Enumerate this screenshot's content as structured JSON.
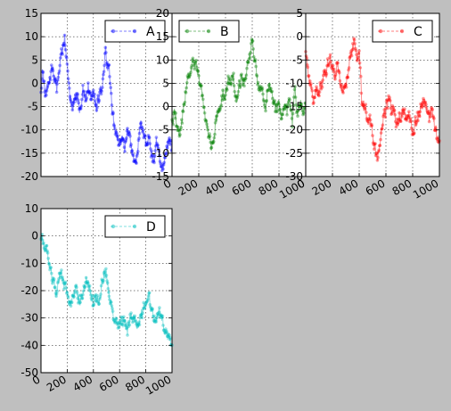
{
  "figure": {
    "background": "#bfbfbf"
  },
  "chart_data": [
    {
      "type": "line",
      "series": [
        {
          "name": "A",
          "color": "#0000ff",
          "anchors": [
            [
              0,
              -1.5
            ],
            [
              10,
              3
            ],
            [
              20,
              0
            ],
            [
              40,
              -3
            ],
            [
              60,
              1
            ],
            [
              80,
              3
            ],
            [
              100,
              1
            ],
            [
              120,
              -1
            ],
            [
              140,
              4
            ],
            [
              160,
              7
            ],
            [
              180,
              9
            ],
            [
              200,
              3
            ],
            [
              220,
              -2
            ],
            [
              240,
              -5
            ],
            [
              260,
              -3
            ],
            [
              280,
              -4
            ],
            [
              300,
              -6
            ],
            [
              320,
              -2
            ],
            [
              340,
              -4
            ],
            [
              360,
              -1
            ],
            [
              380,
              -3
            ],
            [
              400,
              -2
            ],
            [
              420,
              -5
            ],
            [
              440,
              -4
            ],
            [
              460,
              -1
            ],
            [
              480,
              2
            ],
            [
              490,
              8
            ],
            [
              500,
              5
            ],
            [
              520,
              3
            ],
            [
              540,
              -5
            ],
            [
              560,
              -9
            ],
            [
              580,
              -11
            ],
            [
              600,
              -13
            ],
            [
              620,
              -12
            ],
            [
              640,
              -15
            ],
            [
              660,
              -10
            ],
            [
              680,
              -12
            ],
            [
              700,
              -15
            ],
            [
              720,
              -18
            ],
            [
              740,
              -14
            ],
            [
              760,
              -8
            ],
            [
              780,
              -10
            ],
            [
              800,
              -13
            ],
            [
              820,
              -12
            ],
            [
              840,
              -15
            ],
            [
              860,
              -17
            ],
            [
              880,
              -13
            ],
            [
              900,
              -15
            ],
            [
              920,
              -19
            ],
            [
              940,
              -16
            ],
            [
              960,
              -14
            ],
            [
              980,
              -12
            ],
            [
              1000,
              -14
            ]
          ]
        }
      ],
      "xlim": [
        0,
        1000
      ],
      "ylim": [
        -20,
        15
      ],
      "yticks": [
        "-20",
        "-15",
        "-10",
        "-5",
        "0",
        "5",
        "10",
        "15"
      ],
      "xticks": [],
      "legend": {
        "label": "A",
        "placement": "upper right"
      },
      "grid": true
    },
    {
      "type": "line",
      "series": [
        {
          "name": "B",
          "color": "#007f00",
          "anchors": [
            [
              0,
              -3
            ],
            [
              20,
              -2
            ],
            [
              40,
              -4
            ],
            [
              60,
              -6
            ],
            [
              80,
              -2
            ],
            [
              100,
              3
            ],
            [
              120,
              6
            ],
            [
              140,
              7
            ],
            [
              160,
              9
            ],
            [
              180,
              10
            ],
            [
              200,
              6
            ],
            [
              220,
              3
            ],
            [
              240,
              1
            ],
            [
              260,
              -4
            ],
            [
              280,
              -6
            ],
            [
              300,
              -9
            ],
            [
              320,
              -5
            ],
            [
              340,
              -2
            ],
            [
              360,
              0
            ],
            [
              380,
              3
            ],
            [
              400,
              2
            ],
            [
              420,
              5
            ],
            [
              440,
              4
            ],
            [
              460,
              7
            ],
            [
              480,
              1
            ],
            [
              500,
              4
            ],
            [
              520,
              7
            ],
            [
              540,
              5
            ],
            [
              560,
              8
            ],
            [
              580,
              10
            ],
            [
              600,
              14
            ],
            [
              620,
              10
            ],
            [
              640,
              5
            ],
            [
              660,
              3
            ],
            [
              680,
              2
            ],
            [
              700,
              0
            ],
            [
              720,
              5
            ],
            [
              740,
              3
            ],
            [
              760,
              1
            ],
            [
              780,
              -1
            ],
            [
              800,
              0
            ],
            [
              820,
              -2
            ],
            [
              840,
              1
            ],
            [
              860,
              -1
            ],
            [
              880,
              2
            ],
            [
              900,
              -3
            ],
            [
              920,
              3
            ],
            [
              940,
              -2
            ],
            [
              960,
              1
            ],
            [
              980,
              -1
            ],
            [
              1000,
              0
            ]
          ]
        }
      ],
      "xlim": [
        0,
        1000
      ],
      "ylim": [
        -15,
        20
      ],
      "yticks": [
        "-15",
        "-10",
        "-5",
        "0",
        "5",
        "10",
        "15",
        "20"
      ],
      "xticks": [
        "0",
        "200",
        "400",
        "600",
        "800",
        "1000"
      ],
      "legend": {
        "label": "B",
        "placement": "upper left"
      },
      "grid": true
    },
    {
      "type": "line",
      "series": [
        {
          "name": "C",
          "color": "#ff0000",
          "anchors": [
            [
              0,
              -4
            ],
            [
              20,
              -9
            ],
            [
              40,
              -10
            ],
            [
              60,
              -14
            ],
            [
              80,
              -11
            ],
            [
              100,
              -12
            ],
            [
              120,
              -10
            ],
            [
              140,
              -8
            ],
            [
              160,
              -7
            ],
            [
              180,
              -5
            ],
            [
              200,
              -6
            ],
            [
              220,
              -9
            ],
            [
              240,
              -5
            ],
            [
              260,
              -10
            ],
            [
              280,
              -12
            ],
            [
              300,
              -11
            ],
            [
              320,
              -8
            ],
            [
              340,
              -3
            ],
            [
              360,
              -1
            ],
            [
              380,
              -4
            ],
            [
              400,
              -3
            ],
            [
              420,
              -14
            ],
            [
              440,
              -15
            ],
            [
              460,
              -17
            ],
            [
              480,
              -18
            ],
            [
              500,
              -21
            ],
            [
              520,
              -25
            ],
            [
              540,
              -27
            ],
            [
              560,
              -22
            ],
            [
              580,
              -17
            ],
            [
              600,
              -15
            ],
            [
              620,
              -14
            ],
            [
              640,
              -16
            ],
            [
              660,
              -15
            ],
            [
              680,
              -19
            ],
            [
              700,
              -18
            ],
            [
              720,
              -17
            ],
            [
              740,
              -16
            ],
            [
              760,
              -18
            ],
            [
              780,
              -17
            ],
            [
              800,
              -20
            ],
            [
              820,
              -19
            ],
            [
              840,
              -17
            ],
            [
              860,
              -16
            ],
            [
              880,
              -14
            ],
            [
              900,
              -15
            ],
            [
              920,
              -17
            ],
            [
              940,
              -16
            ],
            [
              960,
              -18
            ],
            [
              980,
              -21
            ],
            [
              1000,
              -22
            ]
          ]
        }
      ],
      "xlim": [
        0,
        1000
      ],
      "ylim": [
        -30,
        5
      ],
      "yticks": [
        "-30",
        "-25",
        "-20",
        "-15",
        "-10",
        "-5",
        "0",
        "5"
      ],
      "xticks": [
        "0",
        "200",
        "400",
        "600",
        "800",
        "1000"
      ],
      "legend": {
        "label": "C",
        "placement": "upper right"
      },
      "grid": true
    },
    {
      "type": "line",
      "series": [
        {
          "name": "D",
          "color": "#00bfbf",
          "anchors": [
            [
              0,
              0
            ],
            [
              20,
              -2
            ],
            [
              40,
              -5
            ],
            [
              60,
              -10
            ],
            [
              80,
              -15
            ],
            [
              100,
              -18
            ],
            [
              120,
              -20
            ],
            [
              140,
              -15
            ],
            [
              160,
              -13
            ],
            [
              180,
              -18
            ],
            [
              200,
              -20
            ],
            [
              220,
              -24
            ],
            [
              240,
              -22
            ],
            [
              260,
              -20
            ],
            [
              280,
              -23
            ],
            [
              300,
              -25
            ],
            [
              320,
              -21
            ],
            [
              340,
              -18
            ],
            [
              360,
              -17
            ],
            [
              380,
              -21
            ],
            [
              400,
              -24
            ],
            [
              420,
              -21
            ],
            [
              440,
              -23
            ],
            [
              460,
              -19
            ],
            [
              480,
              -14
            ],
            [
              500,
              -13
            ],
            [
              520,
              -22
            ],
            [
              540,
              -27
            ],
            [
              560,
              -31
            ],
            [
              580,
              -34
            ],
            [
              600,
              -33
            ],
            [
              620,
              -30
            ],
            [
              640,
              -32
            ],
            [
              660,
              -35
            ],
            [
              680,
              -30
            ],
            [
              700,
              -29
            ],
            [
              720,
              -31
            ],
            [
              740,
              -34
            ],
            [
              760,
              -30
            ],
            [
              780,
              -26
            ],
            [
              800,
              -24
            ],
            [
              820,
              -22
            ],
            [
              840,
              -25
            ],
            [
              860,
              -29
            ],
            [
              880,
              -30
            ],
            [
              900,
              -27
            ],
            [
              920,
              -30
            ],
            [
              940,
              -35
            ],
            [
              960,
              -36
            ],
            [
              980,
              -38
            ],
            [
              1000,
              -41
            ]
          ]
        }
      ],
      "xlim": [
        0,
        1000
      ],
      "ylim": [
        -50,
        10
      ],
      "yticks": [
        "-50",
        "-40",
        "-30",
        "-20",
        "-10",
        "0",
        "10"
      ],
      "xticks": [
        "0",
        "200",
        "400",
        "600",
        "800",
        "1000"
      ],
      "legend": {
        "label": "D",
        "placement": "upper right"
      },
      "grid": true
    }
  ]
}
